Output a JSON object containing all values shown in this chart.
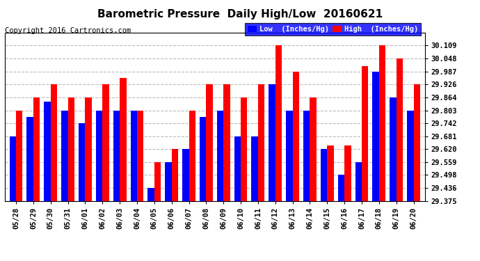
{
  "title": "Barometric Pressure  Daily High/Low  20160621",
  "copyright": "Copyright 2016 Cartronics.com",
  "dates": [
    "05/28",
    "05/29",
    "05/30",
    "05/31",
    "06/01",
    "06/02",
    "06/03",
    "06/04",
    "06/05",
    "06/06",
    "06/07",
    "06/08",
    "06/09",
    "06/10",
    "06/11",
    "06/12",
    "06/13",
    "06/14",
    "06/15",
    "06/16",
    "06/17",
    "06/18",
    "06/19",
    "06/20"
  ],
  "low_values": [
    29.681,
    29.773,
    29.843,
    29.803,
    29.742,
    29.803,
    29.803,
    29.803,
    29.436,
    29.559,
    29.62,
    29.773,
    29.803,
    29.681,
    29.681,
    29.926,
    29.803,
    29.803,
    29.62,
    29.498,
    29.559,
    29.987,
    29.864,
    29.803
  ],
  "high_values": [
    29.803,
    29.864,
    29.926,
    29.864,
    29.864,
    29.926,
    29.957,
    29.803,
    29.559,
    29.62,
    29.803,
    29.926,
    29.926,
    29.864,
    29.926,
    30.109,
    29.987,
    29.864,
    29.636,
    29.636,
    30.012,
    30.109,
    30.048,
    29.926
  ],
  "ylim_min": 29.375,
  "ylim_max": 30.17,
  "yticks": [
    29.375,
    29.436,
    29.498,
    29.559,
    29.62,
    29.681,
    29.742,
    29.803,
    29.864,
    29.926,
    29.987,
    30.048,
    30.109
  ],
  "bar_width": 0.38,
  "low_color": "#0000FF",
  "high_color": "#FF0000",
  "bg_color": "#FFFFFF",
  "grid_color": "#BBBBBB",
  "title_fontsize": 11,
  "tick_fontsize": 7.5,
  "copyright_fontsize": 7.5
}
